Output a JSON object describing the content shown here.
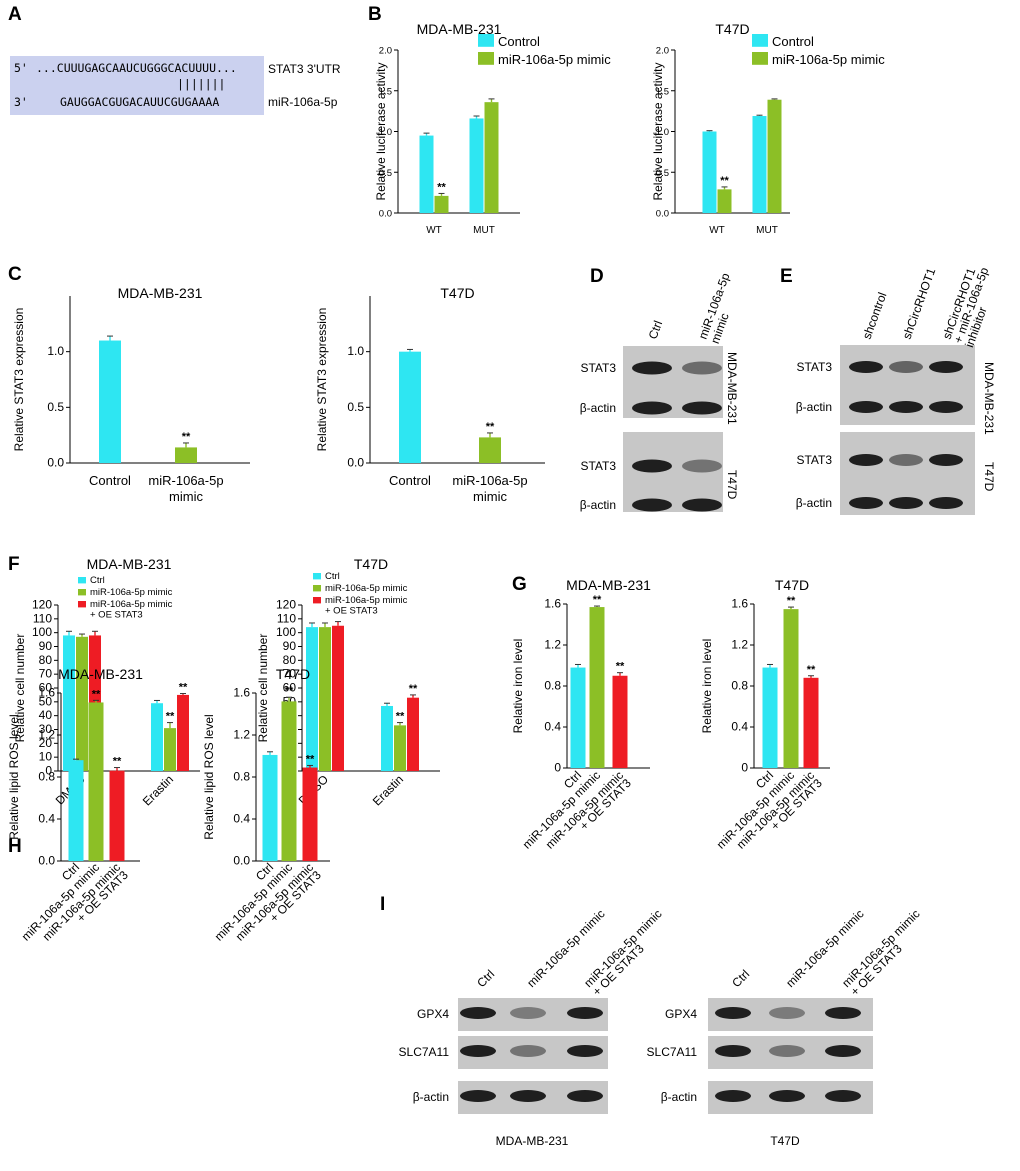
{
  "figure": {
    "panels": {
      "A": "A",
      "B": "B",
      "C": "C",
      "D": "D",
      "E": "E",
      "F": "F",
      "G": "G",
      "H": "H",
      "I": "I"
    },
    "colors": {
      "control": "#2ee6f2",
      "mimic": "#8cbf26",
      "oe": "#ee1c24",
      "seqbg": "#cbd1ef",
      "blot_bg": "#c7c7c7",
      "band": "#1f1f1f"
    }
  },
  "panelA": {
    "utr_prefix": "5'",
    "utr_seq": "...CUUUGAGCAAUCUGGGCACUUUU...",
    "utr_label": "STAT3 3'UTR",
    "pairing": "|||||||",
    "mir_prefix": "3'",
    "mir_seq": "GAUGGACGUGACAUUCGUGAAAA",
    "mir_label": "miR-106a-5p"
  },
  "panelD": {
    "lanes": [
      "Ctrl",
      "miR-106a-5p\nmimic"
    ],
    "rows": [
      "STAT3",
      "β-actin",
      "STAT3",
      "β-actin"
    ],
    "cells": [
      "MDA-MB-231",
      "T47D"
    ]
  },
  "panelE": {
    "lanes": [
      "shcontrol",
      "shCircRHOT1",
      "shCircRHOT1\n+ miR-106a-5p\ninhibitor"
    ],
    "rows": [
      "STAT3",
      "β-actin",
      "STAT3",
      "β-actin"
    ],
    "cells": [
      "MDA-MB-231",
      "T47D"
    ]
  },
  "panelI": {
    "lanes": [
      "Ctrl",
      "miR-106a-5p mimic",
      "miR-106a-5p mimic\n+ OE STAT3"
    ],
    "rows": [
      "GPX4",
      "SLC7A11",
      "β-actin"
    ],
    "cells": [
      "MDA-MB-231",
      "T47D"
    ]
  },
  "chart_data": [
    {
      "id": "B1",
      "type": "bar",
      "title": "MDA-MB-231",
      "ylabel": "Relative luciferase activity",
      "ylim": [
        0,
        2.0
      ],
      "yticks": [
        "0.0",
        "0.5",
        "1.0",
        "1.5",
        "2.0"
      ],
      "categories": [
        "WT",
        "MUT"
      ],
      "legend": [
        "Control",
        "miR-106a-5p mimic"
      ],
      "series": [
        {
          "name": "Control",
          "values": [
            0.95,
            1.16
          ],
          "errors": [
            0.03,
            0.03
          ],
          "sig": [
            "",
            ""
          ]
        },
        {
          "name": "miR-106a-5p mimic",
          "values": [
            0.21,
            1.36
          ],
          "errors": [
            0.03,
            0.04
          ],
          "sig": [
            "**",
            ""
          ]
        }
      ]
    },
    {
      "id": "B2",
      "type": "bar",
      "title": "T47D",
      "ylabel": "Relative luciferase activity",
      "ylim": [
        0,
        2.0
      ],
      "yticks": [
        "0.0",
        "0.5",
        "1.0",
        "1.5",
        "2.0"
      ],
      "categories": [
        "WT",
        "MUT"
      ],
      "legend": [
        "Control",
        "miR-106a-5p mimic"
      ],
      "series": [
        {
          "name": "Control",
          "values": [
            1.0,
            1.19
          ],
          "errors": [
            0.01,
            0.01
          ],
          "sig": [
            "",
            ""
          ]
        },
        {
          "name": "miR-106a-5p mimic",
          "values": [
            0.29,
            1.39
          ],
          "errors": [
            0.03,
            0.01
          ],
          "sig": [
            "**",
            ""
          ]
        }
      ]
    },
    {
      "id": "C1",
      "type": "bar",
      "title": "MDA-MB-231",
      "ylabel": "Relative STAT3 expression",
      "ylim": [
        0,
        1.5
      ],
      "yticks": [
        "0.0",
        "0.5",
        "1.0"
      ],
      "categories": [
        "Control",
        "miR-106a-5p\nmimic"
      ],
      "series": [
        {
          "name": "value",
          "values": [
            1.1,
            0.14
          ],
          "errors": [
            0.04,
            0.04
          ],
          "sig": [
            "",
            "**"
          ]
        }
      ]
    },
    {
      "id": "C2",
      "type": "bar",
      "title": "T47D",
      "ylabel": "Relative STAT3 expression",
      "ylim": [
        0,
        1.5
      ],
      "yticks": [
        "0.0",
        "0.5",
        "1.0"
      ],
      "categories": [
        "Control",
        "miR-106a-5p\nmimic"
      ],
      "series": [
        {
          "name": "value",
          "values": [
            1.0,
            0.23
          ],
          "errors": [
            0.02,
            0.04
          ],
          "sig": [
            "",
            "**"
          ]
        }
      ]
    },
    {
      "id": "F1",
      "type": "bar",
      "title": "MDA-MB-231",
      "ylabel": "Relative cell number",
      "ylim": [
        0,
        120
      ],
      "yticks": [
        "0",
        "10",
        "20",
        "30",
        "40",
        "50",
        "60",
        "70",
        "80",
        "90",
        "100",
        "110",
        "120"
      ],
      "categories": [
        "DMSO",
        "Erastin"
      ],
      "legend": [
        "Ctrl",
        "miR-106a-5p mimic",
        "miR-106a-5p mimic\n+ OE STAT3"
      ],
      "series": [
        {
          "name": "Ctrl",
          "values": [
            98,
            49
          ],
          "errors": [
            3,
            2
          ],
          "sig": [
            "",
            ""
          ]
        },
        {
          "name": "miR-106a-5p mimic",
          "values": [
            97,
            31
          ],
          "errors": [
            2,
            4
          ],
          "sig": [
            "",
            "**"
          ]
        },
        {
          "name": "miR-106a-5p mimic + OE STAT3",
          "values": [
            98,
            55
          ],
          "errors": [
            3,
            1
          ],
          "sig": [
            "",
            "**"
          ]
        }
      ]
    },
    {
      "id": "F2",
      "type": "bar",
      "title": "T47D",
      "ylabel": "Relative cell number",
      "ylim": [
        0,
        120
      ],
      "yticks": [
        "0",
        "10",
        "20",
        "30",
        "40",
        "50",
        "60",
        "70",
        "80",
        "90",
        "100",
        "110",
        "120"
      ],
      "categories": [
        "DMSO",
        "Erastin"
      ],
      "legend": [
        "Ctrl",
        "miR-106a-5p mimic",
        "miR-106a-5p mimic\n+ OE STAT3"
      ],
      "series": [
        {
          "name": "Ctrl",
          "values": [
            104,
            47
          ],
          "errors": [
            3,
            2
          ],
          "sig": [
            "",
            ""
          ]
        },
        {
          "name": "miR-106a-5p mimic",
          "values": [
            104,
            33
          ],
          "errors": [
            3,
            2
          ],
          "sig": [
            "",
            "**"
          ]
        },
        {
          "name": "miR-106a-5p mimic + OE STAT3",
          "values": [
            105,
            53
          ],
          "errors": [
            3,
            2
          ],
          "sig": [
            "",
            "**"
          ]
        }
      ]
    },
    {
      "id": "G1",
      "type": "bar",
      "title": "MDA-MB-231",
      "ylabel": "Relative iron level",
      "ylim": [
        0,
        1.6
      ],
      "yticks": [
        "0",
        "0.4",
        "0.8",
        "1.2",
        "1.6"
      ],
      "categories": [
        "Ctrl",
        "miR-106a-5p mimic",
        "miR-106a-5p mimic\n+ OE STAT3"
      ],
      "series": [
        {
          "name": "value",
          "values": [
            0.98,
            1.57,
            0.9
          ],
          "errors": [
            0.03,
            0.01,
            0.03
          ],
          "sig": [
            "",
            "**",
            "**"
          ]
        }
      ]
    },
    {
      "id": "G2",
      "type": "bar",
      "title": "T47D",
      "ylabel": "Relative iron level",
      "ylim": [
        0,
        1.6
      ],
      "yticks": [
        "0",
        "0.4",
        "0.8",
        "1.2",
        "1.6"
      ],
      "categories": [
        "Ctrl",
        "miR-106a-5p mimic",
        "miR-106a-5p mimic\n+ OE STAT3"
      ],
      "series": [
        {
          "name": "value",
          "values": [
            0.98,
            1.55,
            0.88
          ],
          "errors": [
            0.03,
            0.02,
            0.02
          ],
          "sig": [
            "",
            "**",
            "**"
          ]
        }
      ]
    },
    {
      "id": "H1",
      "type": "bar",
      "title": "MDA-MB-231",
      "ylabel": "Relative lipid ROS level",
      "ylim": [
        0,
        1.6
      ],
      "yticks": [
        "0.0",
        "0.4",
        "0.8",
        "1.2",
        "1.6"
      ],
      "categories": [
        "Ctrl",
        "miR-106a-5p mimic",
        "miR-106a-5p mimic\n+ OE STAT3"
      ],
      "series": [
        {
          "name": "value",
          "values": [
            0.96,
            1.51,
            0.86
          ],
          "errors": [
            0.01,
            0.02,
            0.03
          ],
          "sig": [
            "",
            "**",
            "**"
          ]
        }
      ]
    },
    {
      "id": "H2",
      "type": "bar",
      "title": "T47D",
      "ylabel": "Relative lipid ROS level",
      "ylim": [
        0,
        1.6
      ],
      "yticks": [
        "0.0",
        "0.4",
        "0.8",
        "1.2",
        "1.6"
      ],
      "categories": [
        "Ctrl",
        "miR-106a-5p mimic",
        "miR-106a-5p mimic\n+ OE STAT3"
      ],
      "series": [
        {
          "name": "value",
          "values": [
            1.01,
            1.52,
            0.89
          ],
          "errors": [
            0.03,
            0.04,
            0.02
          ],
          "sig": [
            "",
            "**",
            "**"
          ]
        }
      ]
    }
  ]
}
